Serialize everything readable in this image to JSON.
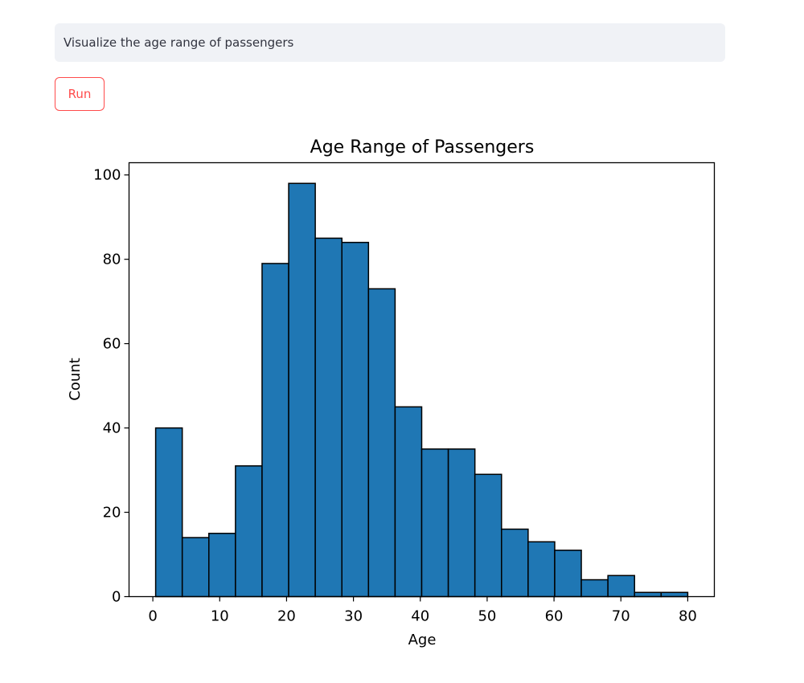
{
  "prompt": {
    "value": "Visualize the age range of passengers"
  },
  "run_button": {
    "label": "Run",
    "color": "#ff4b4b"
  },
  "chart_data": {
    "type": "bar",
    "subtype": "histogram",
    "title": "Age Range of Passengers",
    "xlabel": "Age",
    "ylabel": "Count",
    "bin_edges": [
      0.42,
      4.399,
      8.378,
      12.357,
      16.336,
      20.315,
      24.294,
      28.273,
      32.252,
      36.231,
      40.21,
      44.189,
      48.168,
      52.147,
      56.126,
      60.105,
      64.084,
      68.063,
      72.042,
      76.021,
      80.0
    ],
    "values": [
      40,
      14,
      15,
      31,
      79,
      98,
      85,
      84,
      73,
      45,
      35,
      35,
      29,
      16,
      13,
      11,
      4,
      5,
      1,
      1
    ],
    "xticks": [
      0,
      10,
      20,
      30,
      40,
      50,
      60,
      70,
      80
    ],
    "yticks": [
      0,
      20,
      40,
      60,
      80,
      100
    ],
    "xlim": [
      -3.56,
      83.98
    ],
    "ylim": [
      0,
      102.9
    ],
    "bar_color": "#1f77b4",
    "edge_color": "#000000",
    "grid": false,
    "legend": null
  }
}
